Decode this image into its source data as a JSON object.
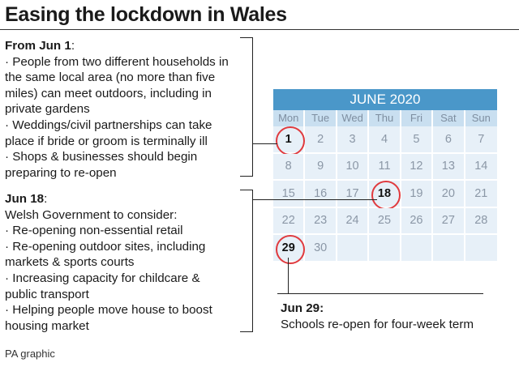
{
  "title": "Easing the lockdown in Wales",
  "panel1": {
    "heading": "From Jun 1",
    "heading_suffix": ":",
    "lines": [
      "· People from two different households in",
      "the same local area (no more than five",
      "miles) can meet outdoors, including in",
      "private gardens",
      "· Weddings/civil partnerships can take",
      "place if bride or groom is terminally ill",
      "· Shops & businesses should begin",
      "preparing to re-open"
    ]
  },
  "panel2": {
    "heading": "Jun 18",
    "heading_suffix": ":",
    "lines": [
      "Welsh Government to consider:",
      "· Re-opening non-essential retail",
      "· Re-opening outdoor sites, including",
      "markets & sports courts",
      "· Increasing capacity for childcare &",
      "public transport",
      "· Helping people move house to boost",
      "housing market"
    ]
  },
  "calendar": {
    "month": "JUNE 2020",
    "weekdays": [
      "Mon",
      "Tue",
      "Wed",
      "Thu",
      "Fri",
      "Sat",
      "Sun"
    ],
    "days": [
      "1",
      "2",
      "3",
      "4",
      "5",
      "6",
      "7",
      "8",
      "9",
      "10",
      "11",
      "12",
      "13",
      "14",
      "15",
      "16",
      "17",
      "18",
      "19",
      "20",
      "21",
      "22",
      "23",
      "24",
      "25",
      "26",
      "27",
      "28",
      "29",
      "30",
      "",
      "",
      "",
      "",
      ""
    ],
    "highlighted": [
      "1",
      "18",
      "29"
    ],
    "highlight_color": "#e03a3e",
    "header_color": "#4a97c9",
    "weekday_bg": "#c9dff0",
    "cell_bg": "#e7f0f8"
  },
  "note": {
    "heading": "Jun 29:",
    "text": "Schools re-open for four-week term"
  },
  "source": "PA graphic"
}
